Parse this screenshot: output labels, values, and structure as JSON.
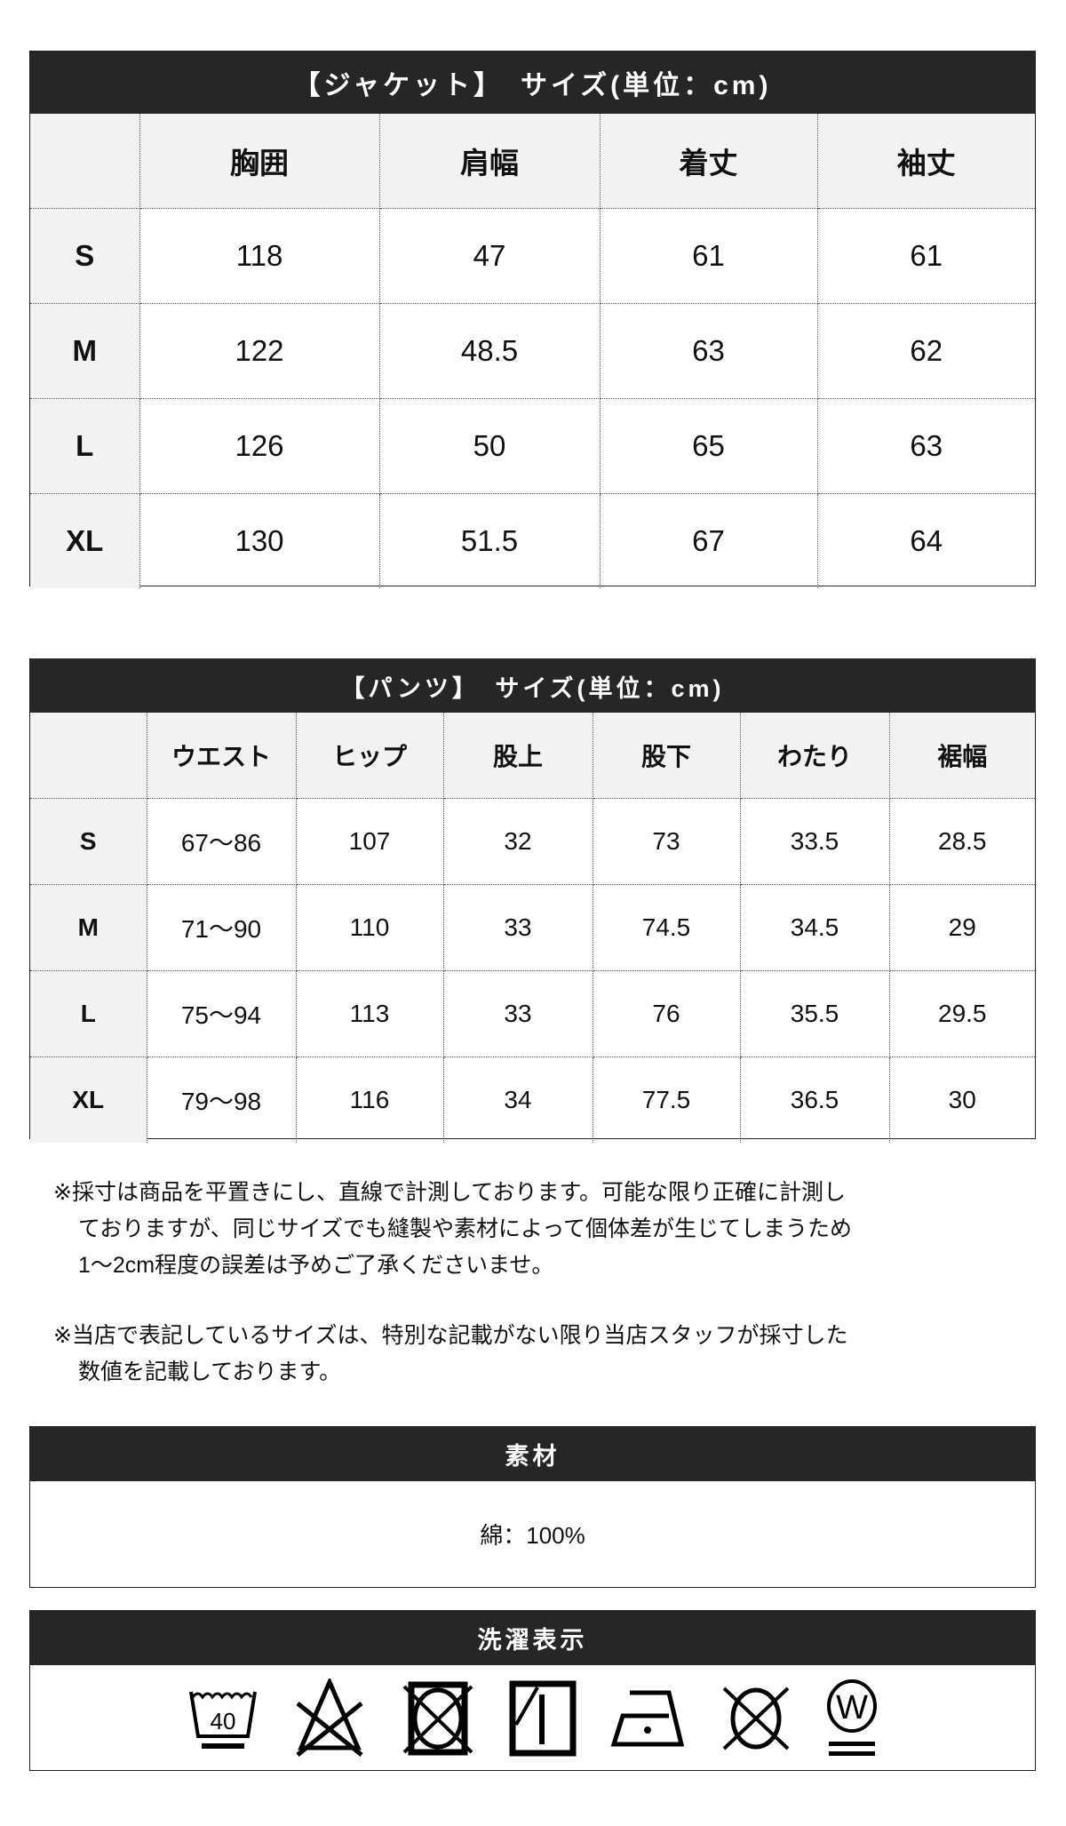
{
  "jacket": {
    "title": "【ジャケット】　サイズ(単位：cm)",
    "headers": [
      "",
      "胸囲",
      "肩幅",
      "着丈",
      "袖丈"
    ],
    "rows": [
      [
        "S",
        "118",
        "47",
        "61",
        "61"
      ],
      [
        "M",
        "122",
        "48.5",
        "63",
        "62"
      ],
      [
        "L",
        "126",
        "50",
        "65",
        "63"
      ],
      [
        "XL",
        "130",
        "51.5",
        "67",
        "64"
      ]
    ]
  },
  "pants": {
    "title": "【パンツ】　サイズ(単位：cm)",
    "headers": [
      "",
      "ウエスト",
      "ヒップ",
      "股上",
      "股下",
      "わたり",
      "裾幅"
    ],
    "rows": [
      [
        "S",
        "67〜86",
        "107",
        "32",
        "73",
        "33.5",
        "28.5"
      ],
      [
        "M",
        "71〜90",
        "110",
        "33",
        "74.5",
        "34.5",
        "29"
      ],
      [
        "L",
        "75〜94",
        "113",
        "33",
        "76",
        "35.5",
        "29.5"
      ],
      [
        "XL",
        "79〜98",
        "116",
        "34",
        "77.5",
        "36.5",
        "30"
      ]
    ]
  },
  "notes": [
    [
      "※採寸は商品を平置きにし、直線で計測しております。可能な限り正確に計測し",
      "ておりますが、同じサイズでも縫製や素材によって個体差が生じてしまうため",
      "1〜2cm程度の誤差は予めご了承くださいませ。"
    ],
    [
      "※当店で表記しているサイズは、特別な記載がない限り当店スタッフが採寸した",
      "数値を記載しております。"
    ]
  ],
  "material": {
    "title": "素材",
    "value": "綿：100%"
  },
  "care": {
    "title": "洗濯表示",
    "icons": [
      {
        "name": "wash-40-gentle-icon",
        "label": "40"
      },
      {
        "name": "no-bleach-icon"
      },
      {
        "name": "no-tumble-dry-icon"
      },
      {
        "name": "line-dry-shade-icon"
      },
      {
        "name": "iron-low-icon"
      },
      {
        "name": "no-dry-clean-icon"
      },
      {
        "name": "wet-clean-very-gentle-icon",
        "label": "W"
      }
    ]
  },
  "colors": {
    "bar": "#262626",
    "label_cell": "#f2f2f2"
  }
}
